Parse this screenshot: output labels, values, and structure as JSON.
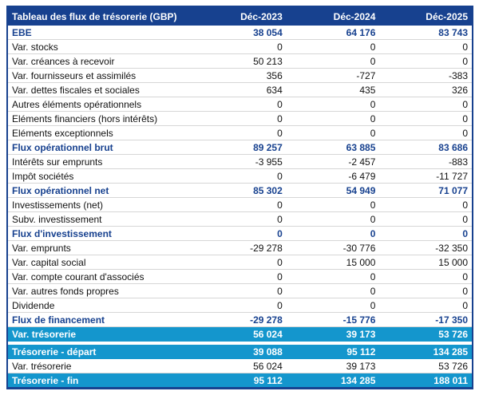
{
  "table": {
    "title": "Tableau des flux de trésorerie (GBP)",
    "columns": [
      "Déc-2023",
      "Déc-2024",
      "Déc-2025"
    ],
    "rows": [
      {
        "label": "EBE",
        "values": [
          "38 054",
          "64 176",
          "83 743"
        ],
        "style": "bold"
      },
      {
        "label": "Var. stocks",
        "values": [
          "0",
          "0",
          "0"
        ],
        "style": "normal"
      },
      {
        "label": "Var. créances à recevoir",
        "values": [
          "50 213",
          "0",
          "0"
        ],
        "style": "normal"
      },
      {
        "label": "Var. fournisseurs et assimilés",
        "values": [
          "356",
          "-727",
          "-383"
        ],
        "style": "normal"
      },
      {
        "label": "Var. dettes fiscales et sociales",
        "values": [
          "634",
          "435",
          "326"
        ],
        "style": "normal"
      },
      {
        "label": "Autres éléments opérationnels",
        "values": [
          "0",
          "0",
          "0"
        ],
        "style": "normal"
      },
      {
        "label": "Eléments financiers (hors intérêts)",
        "values": [
          "0",
          "0",
          "0"
        ],
        "style": "normal"
      },
      {
        "label": "Eléments exceptionnels",
        "values": [
          "0",
          "0",
          "0"
        ],
        "style": "normal"
      },
      {
        "label": "Flux opérationnel brut",
        "values": [
          "89 257",
          "63 885",
          "83 686"
        ],
        "style": "bold"
      },
      {
        "label": "Intérêts sur emprunts",
        "values": [
          "-3 955",
          "-2 457",
          "-883"
        ],
        "style": "normal"
      },
      {
        "label": "Impôt sociétés",
        "values": [
          "0",
          "-6 479",
          "-11 727"
        ],
        "style": "normal"
      },
      {
        "label": "Flux opérationnel net",
        "values": [
          "85 302",
          "54 949",
          "71 077"
        ],
        "style": "bold"
      },
      {
        "label": "Investissements (net)",
        "values": [
          "0",
          "0",
          "0"
        ],
        "style": "normal"
      },
      {
        "label": "Subv. investissement",
        "values": [
          "0",
          "0",
          "0"
        ],
        "style": "normal"
      },
      {
        "label": "Flux d'investissement",
        "values": [
          "0",
          "0",
          "0"
        ],
        "style": "bold"
      },
      {
        "label": "Var. emprunts",
        "values": [
          "-29 278",
          "-30 776",
          "-32 350"
        ],
        "style": "normal"
      },
      {
        "label": "Var. capital social",
        "values": [
          "0",
          "15 000",
          "15 000"
        ],
        "style": "normal"
      },
      {
        "label": "Var. compte courant d'associés",
        "values": [
          "0",
          "0",
          "0"
        ],
        "style": "normal"
      },
      {
        "label": "Var. autres fonds propres",
        "values": [
          "0",
          "0",
          "0"
        ],
        "style": "normal"
      },
      {
        "label": "Dividende",
        "values": [
          "0",
          "0",
          "0"
        ],
        "style": "normal"
      },
      {
        "label": "Flux de financement",
        "values": [
          "-29 278",
          "-15 776",
          "-17 350"
        ],
        "style": "bold"
      },
      {
        "label": "Var. trésorerie",
        "values": [
          "56 024",
          "39 173",
          "53 726"
        ],
        "style": "highlight"
      },
      {
        "style": "spacer"
      },
      {
        "label": "Trésorerie - départ",
        "values": [
          "39 088",
          "95 112",
          "134 285"
        ],
        "style": "highlight"
      },
      {
        "label": "Var. trésorerie",
        "values": [
          "56 024",
          "39 173",
          "53 726"
        ],
        "style": "normal"
      },
      {
        "label": "Trésorerie - fin",
        "values": [
          "95 112",
          "134 285",
          "188 011"
        ],
        "style": "highlight"
      }
    ]
  },
  "colors": {
    "header_bg": "#17418F",
    "header_text": "#FFFFFF",
    "bold_row_text": "#17418F",
    "highlight_bg": "#1496CD",
    "highlight_text": "#FFFFFF",
    "row_separator": "#D6D6D6",
    "outer_border": "#17418F"
  },
  "chart_data": {
    "type": "table",
    "title": "Tableau des flux de trésorerie (GBP)",
    "columns": [
      "Déc-2023",
      "Déc-2024",
      "Déc-2025"
    ],
    "rows": [
      {
        "label": "EBE",
        "values": [
          38054,
          64176,
          83743
        ]
      },
      {
        "label": "Var. stocks",
        "values": [
          0,
          0,
          0
        ]
      },
      {
        "label": "Var. créances à recevoir",
        "values": [
          50213,
          0,
          0
        ]
      },
      {
        "label": "Var. fournisseurs et assimilés",
        "values": [
          356,
          -727,
          -383
        ]
      },
      {
        "label": "Var. dettes fiscales et sociales",
        "values": [
          634,
          435,
          326
        ]
      },
      {
        "label": "Autres éléments opérationnels",
        "values": [
          0,
          0,
          0
        ]
      },
      {
        "label": "Eléments financiers (hors intérêts)",
        "values": [
          0,
          0,
          0
        ]
      },
      {
        "label": "Eléments exceptionnels",
        "values": [
          0,
          0,
          0
        ]
      },
      {
        "label": "Flux opérationnel brut",
        "values": [
          89257,
          63885,
          83686
        ]
      },
      {
        "label": "Intérêts sur emprunts",
        "values": [
          -3955,
          -2457,
          -883
        ]
      },
      {
        "label": "Impôt sociétés",
        "values": [
          0,
          -6479,
          -11727
        ]
      },
      {
        "label": "Flux opérationnel net",
        "values": [
          85302,
          54949,
          71077
        ]
      },
      {
        "label": "Investissements (net)",
        "values": [
          0,
          0,
          0
        ]
      },
      {
        "label": "Subv. investissement",
        "values": [
          0,
          0,
          0
        ]
      },
      {
        "label": "Flux d'investissement",
        "values": [
          0,
          0,
          0
        ]
      },
      {
        "label": "Var. emprunts",
        "values": [
          -29278,
          -30776,
          -32350
        ]
      },
      {
        "label": "Var. capital social",
        "values": [
          0,
          15000,
          15000
        ]
      },
      {
        "label": "Var. compte courant d'associés",
        "values": [
          0,
          0,
          0
        ]
      },
      {
        "label": "Var. autres fonds propres",
        "values": [
          0,
          0,
          0
        ]
      },
      {
        "label": "Dividende",
        "values": [
          0,
          0,
          0
        ]
      },
      {
        "label": "Flux de financement",
        "values": [
          -29278,
          -15776,
          -17350
        ]
      },
      {
        "label": "Var. trésorerie",
        "values": [
          56024,
          39173,
          53726
        ]
      },
      {
        "label": "Trésorerie - départ",
        "values": [
          39088,
          95112,
          134285
        ]
      },
      {
        "label": "Var. trésorerie",
        "values": [
          56024,
          39173,
          53726
        ]
      },
      {
        "label": "Trésorerie - fin",
        "values": [
          95112,
          134285,
          188011
        ]
      }
    ]
  }
}
